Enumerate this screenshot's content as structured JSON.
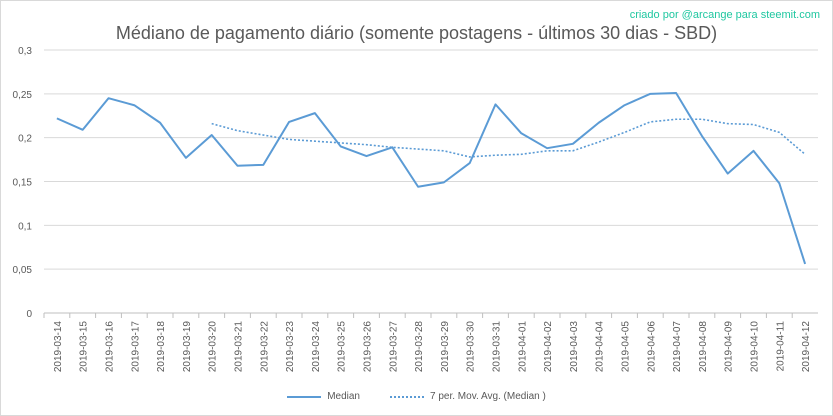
{
  "credit": "criado por @arcange para steemit.com",
  "chart_data": {
    "type": "line",
    "title": "Médiano de pagamento diário (somente postagens - últimos 30 dias - SBD)",
    "xlabel": "",
    "ylabel": "",
    "ylim": [
      0,
      0.3
    ],
    "yticks": [
      "0",
      "0,05",
      "0,1",
      "0,15",
      "0,2",
      "0,25",
      "0,3"
    ],
    "grid": true,
    "legend_position": "bottom",
    "categories": [
      "2019-03-14",
      "2019-03-15",
      "2019-03-16",
      "2019-03-17",
      "2019-03-18",
      "2019-03-19",
      "2019-03-20",
      "2019-03-21",
      "2019-03-22",
      "2019-03-23",
      "2019-03-24",
      "2019-03-25",
      "2019-03-26",
      "2019-03-27",
      "2019-03-28",
      "2019-03-29",
      "2019-03-30",
      "2019-03-31",
      "2019-04-01",
      "2019-04-02",
      "2019-04-03",
      "2019-04-04",
      "2019-04-05",
      "2019-04-06",
      "2019-04-07",
      "2019-04-08",
      "2019-04-09",
      "2019-04-10",
      "2019-04-11",
      "2019-04-12"
    ],
    "series": [
      {
        "name": "Median",
        "style": "solid",
        "color": "#5b9bd5",
        "values": [
          0.222,
          0.209,
          0.245,
          0.237,
          0.217,
          0.177,
          0.203,
          0.168,
          0.169,
          0.218,
          0.228,
          0.19,
          0.179,
          0.189,
          0.144,
          0.149,
          0.171,
          0.238,
          0.205,
          0.188,
          0.193,
          0.217,
          0.237,
          0.25,
          0.251,
          0.202,
          0.159,
          0.185,
          0.148,
          0.056
        ]
      },
      {
        "name": "7 per. Mov. Avg. (Median )",
        "style": "dotted",
        "color": "#5b9bd5",
        "values": [
          null,
          null,
          null,
          null,
          null,
          null,
          0.216,
          0.208,
          0.203,
          0.198,
          0.196,
          0.194,
          0.192,
          0.189,
          0.187,
          0.185,
          0.178,
          0.18,
          0.181,
          0.185,
          0.185,
          0.195,
          0.206,
          0.218,
          0.221,
          0.221,
          0.216,
          0.215,
          0.206,
          0.181
        ]
      }
    ]
  }
}
